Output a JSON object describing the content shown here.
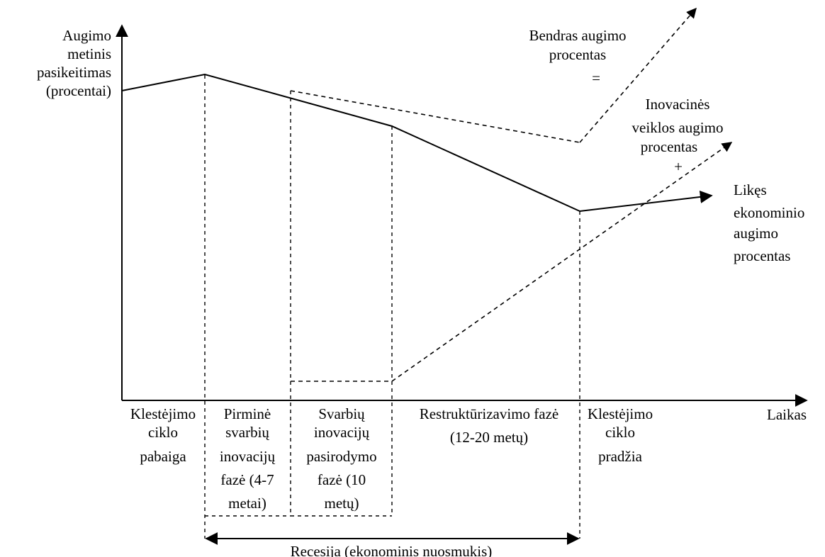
{
  "y_axis_label": [
    "Augimo",
    "metinis",
    "pasikeitimas",
    "(procentai)"
  ],
  "x_axis_label": "Laikas",
  "phases": [
    {
      "lines": [
        "Klestėjimo",
        "ciklo",
        "pabaiga"
      ]
    },
    {
      "lines": [
        "Pirminė",
        "svarbių",
        "inovacijų",
        "fazė (4-7",
        "metai)"
      ]
    },
    {
      "lines": [
        "Svarbių",
        "inovacijų",
        "pasirodymo",
        "fazė (10",
        "metų)"
      ]
    },
    {
      "lines": [
        "Restruktūrizavimo fazė",
        "(12-20 metų)"
      ]
    },
    {
      "lines": [
        "Klestėjimo",
        "ciklo",
        "pradžia"
      ]
    }
  ],
  "recession_label": "Recesija (ekonominis nuosmukis)",
  "curves": {
    "total_growth": {
      "lines": [
        "Bendras augimo",
        "procentas",
        "="
      ],
      "style": "dashed"
    },
    "innovation_growth": {
      "lines": [
        "Inovacinės",
        "veiklos augimo",
        "procentas",
        "+"
      ],
      "style": "dashed"
    },
    "remaining_growth": {
      "lines": [
        "Likęs",
        "ekonominio",
        "augimo",
        "procentas"
      ],
      "style": "solid"
    }
  }
}
